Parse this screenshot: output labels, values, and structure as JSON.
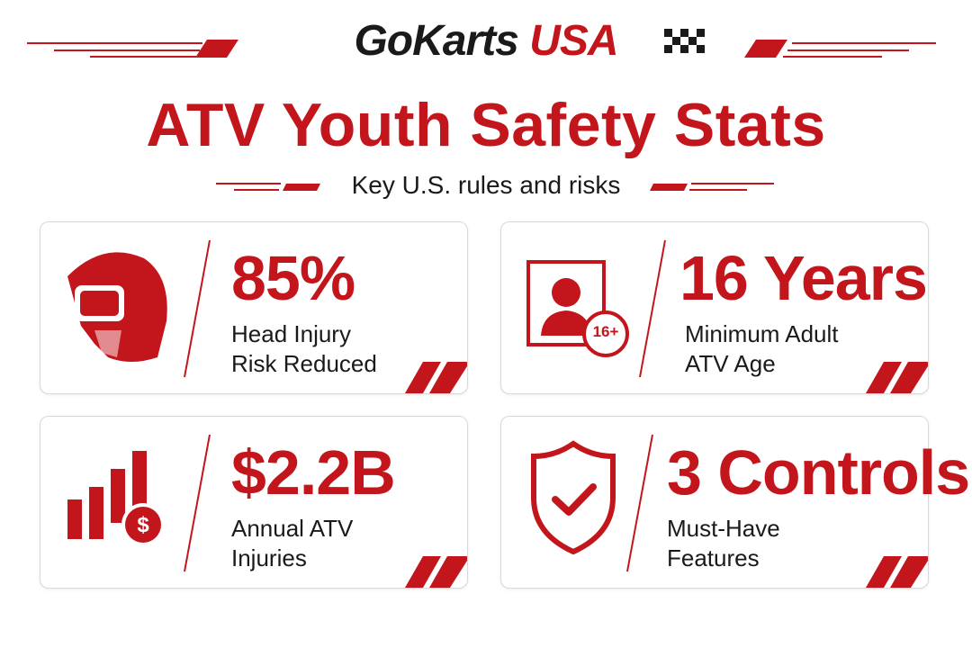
{
  "header": {
    "brand": [
      "GoKarts",
      "USA"
    ],
    "title": "ATV Youth Safety Stats",
    "subtitle": "Key U.S. rules and risks"
  },
  "cards": [
    {
      "stat": "85%",
      "label": [
        "Head Injury",
        "Risk Reduced"
      ]
    },
    {
      "stat": "16 Years",
      "label": [
        "Minimum Adult",
        "ATV Age"
      ],
      "badge": "16+"
    },
    {
      "stat": "$2.2B",
      "label": [
        "Annual ATV",
        "Injuries"
      ]
    },
    {
      "stat": "3 Controls",
      "label": [
        "Must-Have",
        "Features"
      ]
    }
  ]
}
